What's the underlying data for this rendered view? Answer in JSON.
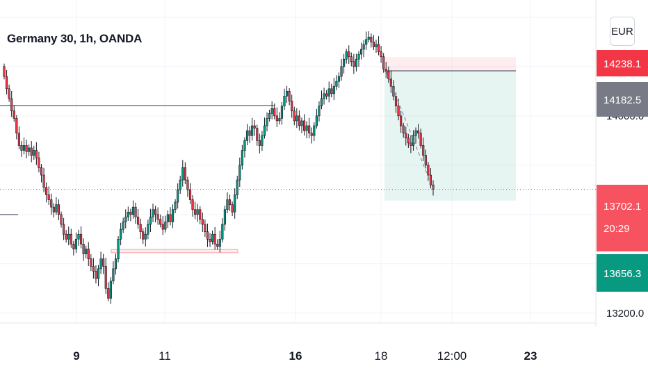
{
  "chart_data": {
    "type": "candlestick",
    "title": "Germany 30, 1h, OANDA",
    "currency": "EUR",
    "y_ticks": [
      14000.0,
      13200.0
    ],
    "ylim": [
      13160,
      14470
    ],
    "x_ticks": [
      {
        "label": "9",
        "bold": true
      },
      {
        "label": "11",
        "bold": false
      },
      {
        "label": "16",
        "bold": true
      },
      {
        "label": "18",
        "bold": false
      },
      {
        "label": "12:00",
        "bold": false
      },
      {
        "label": "23",
        "bold": true
      }
    ],
    "price_tags": [
      {
        "value": "14238.1",
        "color": "#f23645"
      },
      {
        "value": "14182.5",
        "color": "#787b86"
      },
      {
        "value": "13702.1",
        "color": "#f7525f",
        "countdown": "20:29"
      },
      {
        "value": "13656.3",
        "color": "#089981"
      }
    ],
    "horizontal_levels": [
      14042,
      13600
    ],
    "support_zone": [
      13458,
      13445
    ],
    "position": {
      "entry": 14182.5,
      "stop": 14238.1,
      "target": 13656.3,
      "current": 13702.1
    },
    "closes": [
      14160,
      14110,
      14070,
      14020,
      13990,
      13930,
      13880,
      13860,
      13880,
      13855,
      13870,
      13840,
      13860,
      13830,
      13790,
      13760,
      13710,
      13680,
      13660,
      13630,
      13610,
      13640,
      13600,
      13560,
      13520,
      13500,
      13520,
      13480,
      13460,
      13500,
      13520,
      13480,
      13440,
      13460,
      13420,
      13390,
      13370,
      13340,
      13380,
      13420,
      13390,
      13300,
      13260,
      13330,
      13380,
      13420,
      13500,
      13540,
      13570,
      13590,
      13610,
      13600,
      13630,
      13590,
      13560,
      13530,
      13500,
      13520,
      13560,
      13590,
      13620,
      13600,
      13580,
      13560,
      13540,
      13570,
      13600,
      13570,
      13620,
      13650,
      13700,
      13740,
      13790,
      13740,
      13700,
      13660,
      13620,
      13600,
      13620,
      13580,
      13560,
      13530,
      13500,
      13490,
      13520,
      13480,
      13470,
      13500,
      13560,
      13620,
      13660,
      13640,
      13610,
      13680,
      13740,
      13800,
      13860,
      13900,
      13940,
      13920,
      13960,
      13950,
      13900,
      13880,
      13920,
      13960,
      13990,
      14010,
      14030,
      14000,
      13980,
      13990,
      14040,
      14080,
      14100,
      14060,
      14020,
      13980,
      14000,
      13960,
      13980,
      13940,
      13960,
      13930,
      13920,
      13960,
      14000,
      14040,
      14070,
      14090,
      14080,
      14110,
      14090,
      14120,
      14140,
      14160,
      14200,
      14230,
      14260,
      14240,
      14220,
      14200,
      14230,
      14250,
      14270,
      14290,
      14310,
      14320,
      14300,
      14280,
      14290,
      14260,
      14240,
      14190,
      14180,
      14150,
      14120,
      14080,
      14040,
      14000,
      13960,
      13930,
      13910,
      13890,
      13880,
      13920,
      13940,
      13930,
      13880,
      13840,
      13800,
      13760,
      13720,
      13702
    ]
  }
}
